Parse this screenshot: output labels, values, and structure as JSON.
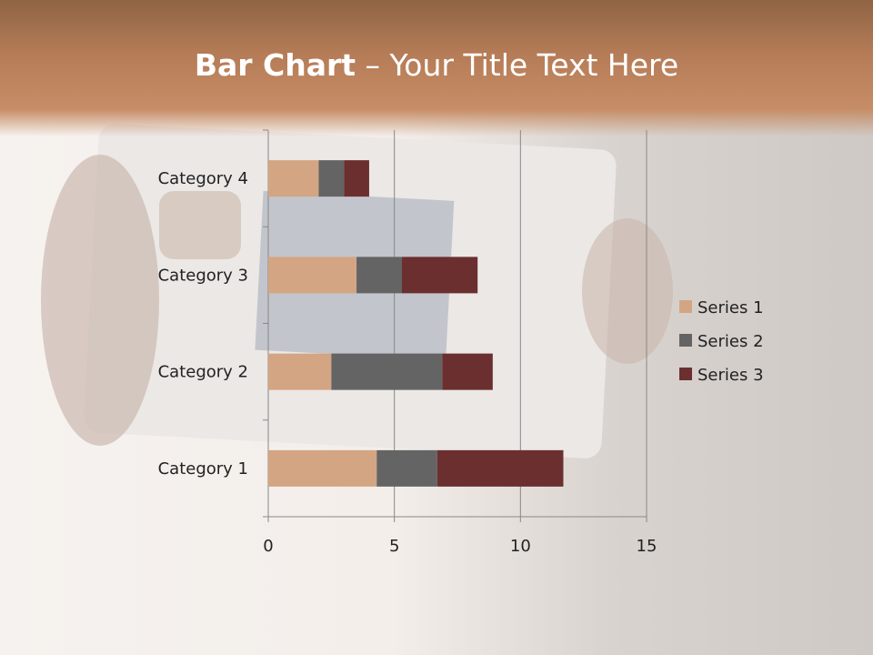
{
  "slide": {
    "title_bold": "Bar Chart",
    "title_rest": " – Your Title Text Here"
  },
  "chart_data": {
    "type": "bar",
    "orientation": "horizontal",
    "stacked": true,
    "categories": [
      "Category 1",
      "Category 2",
      "Category 3",
      "Category 4"
    ],
    "series": [
      {
        "name": "Series 1",
        "values": [
          4.3,
          2.5,
          3.5,
          2
        ],
        "color": "#d4a583"
      },
      {
        "name": "Series 2",
        "values": [
          2.4,
          4.4,
          1.8,
          1
        ],
        "color": "#646464"
      },
      {
        "name": "Series 3",
        "values": [
          5,
          2,
          3,
          1
        ],
        "color": "#6b2f2f"
      }
    ],
    "xlim": [
      0,
      15
    ],
    "xticks": [
      "0",
      "5",
      "10",
      "15"
    ],
    "grid": true,
    "legend": "right"
  }
}
